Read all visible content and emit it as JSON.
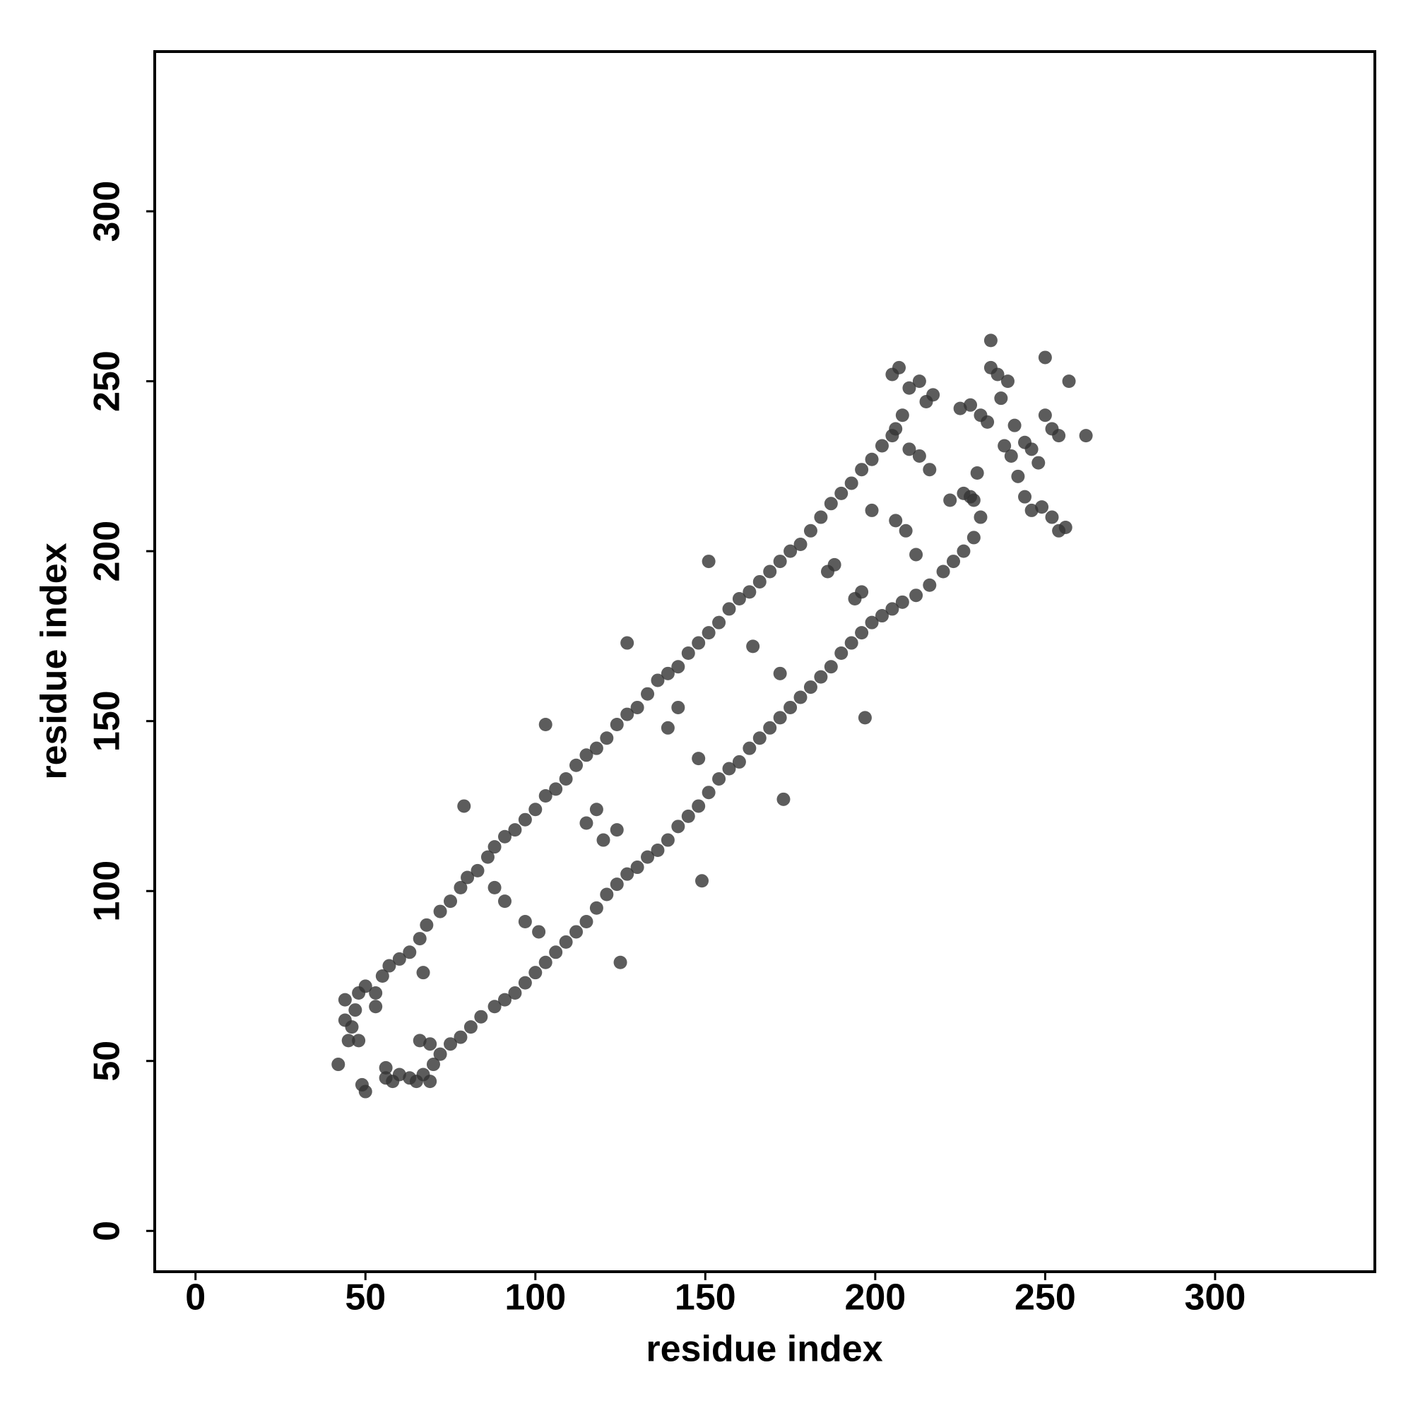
{
  "chart_data": {
    "type": "scatter",
    "xlabel": "residue index",
    "ylabel": "residue index",
    "xlim": [
      -12,
      347
    ],
    "ylim": [
      -12,
      347
    ],
    "xticks": [
      0,
      50,
      100,
      150,
      200,
      250,
      300
    ],
    "yticks": [
      0,
      50,
      100,
      150,
      200,
      250,
      300
    ],
    "grid": false,
    "color": "#333333",
    "x": [
      55,
      57,
      60,
      63,
      66,
      68,
      72,
      75,
      78,
      80,
      83,
      86,
      88,
      91,
      94,
      97,
      100,
      103,
      106,
      109,
      112,
      115,
      118,
      121,
      124,
      127,
      130,
      133,
      136,
      139,
      142,
      145,
      148,
      151,
      154,
      157,
      160,
      163,
      166,
      169,
      172,
      175,
      178,
      181,
      184,
      187,
      190,
      193,
      196,
      199,
      202,
      205,
      75,
      78,
      81,
      84,
      88,
      91,
      94,
      97,
      100,
      103,
      106,
      109,
      112,
      115,
      118,
      121,
      124,
      127,
      130,
      133,
      136,
      139,
      142,
      145,
      148,
      151,
      154,
      157,
      160,
      163,
      166,
      169,
      172,
      175,
      178,
      181,
      184,
      187,
      190,
      193,
      196,
      199,
      202,
      205,
      208,
      212,
      216,
      220,
      223,
      226,
      229,
      231,
      229,
      226,
      222,
      42,
      45,
      44,
      44,
      46,
      48,
      49,
      50,
      47,
      48,
      50,
      56,
      56,
      58,
      60,
      63,
      65,
      67,
      69,
      70,
      72,
      66,
      69,
      67,
      53,
      53,
      205,
      207,
      210,
      213,
      215,
      217,
      208,
      206,
      210,
      213,
      216,
      225,
      228,
      231,
      233,
      234,
      236,
      239,
      234,
      241,
      244,
      246,
      248,
      250,
      252,
      254,
      250,
      257,
      262,
      244,
      246,
      249,
      252,
      254,
      256,
      238,
      240,
      242,
      237,
      230,
      228,
      79,
      103,
      127,
      151,
      125,
      149,
      173,
      197,
      88,
      91,
      97,
      101,
      118,
      124,
      139,
      148,
      142,
      164,
      172,
      188,
      196,
      199,
      212,
      206,
      209,
      186,
      194,
      120,
      115
    ],
    "values": [
      75,
      78,
      80,
      82,
      86,
      90,
      94,
      97,
      101,
      104,
      106,
      110,
      113,
      116,
      118,
      121,
      124,
      128,
      130,
      133,
      137,
      140,
      142,
      145,
      149,
      152,
      154,
      158,
      162,
      164,
      166,
      170,
      173,
      176,
      179,
      183,
      186,
      188,
      191,
      194,
      197,
      200,
      202,
      206,
      210,
      214,
      217,
      220,
      224,
      227,
      231,
      234,
      55,
      57,
      60,
      63,
      66,
      68,
      70,
      73,
      76,
      79,
      82,
      85,
      88,
      91,
      95,
      99,
      102,
      105,
      107,
      110,
      112,
      115,
      119,
      122,
      125,
      129,
      133,
      136,
      138,
      142,
      145,
      148,
      151,
      154,
      157,
      160,
      163,
      166,
      170,
      173,
      176,
      179,
      181,
      183,
      185,
      187,
      190,
      194,
      197,
      200,
      204,
      210,
      215,
      217,
      215,
      49,
      56,
      62,
      68,
      60,
      56,
      43,
      41,
      65,
      70,
      72,
      48,
      45,
      44,
      46,
      45,
      44,
      46,
      44,
      49,
      52,
      56,
      55,
      76,
      66,
      70,
      252,
      254,
      248,
      250,
      244,
      246,
      240,
      236,
      230,
      228,
      224,
      242,
      243,
      240,
      238,
      254,
      252,
      250,
      262,
      237,
      232,
      230,
      226,
      240,
      236,
      234,
      257,
      250,
      234,
      216,
      212,
      213,
      210,
      206,
      207,
      231,
      228,
      222,
      245,
      223,
      216,
      125,
      149,
      173,
      197,
      79,
      103,
      127,
      151,
      101,
      97,
      91,
      88,
      124,
      118,
      148,
      139,
      154,
      172,
      164,
      196,
      188,
      212,
      199,
      209,
      206,
      194,
      186,
      115,
      120
    ]
  }
}
